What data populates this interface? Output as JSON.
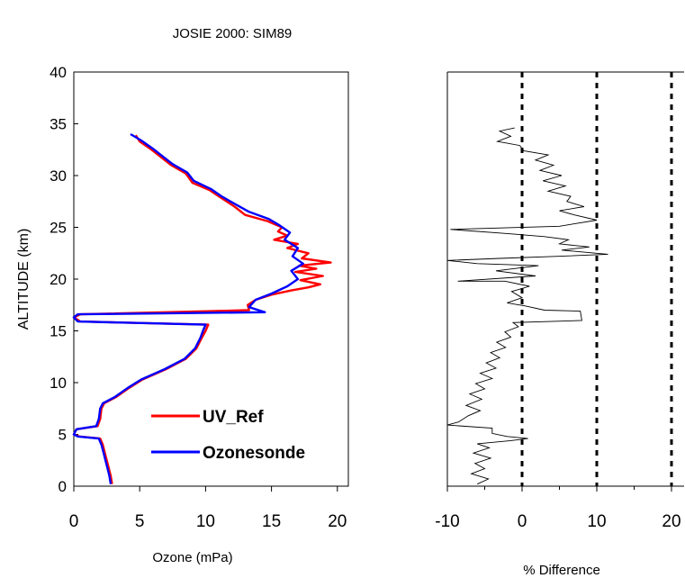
{
  "figure_title": "JOSIE 2000: SIM89",
  "chart_data": [
    {
      "type": "line",
      "title": "JOSIE 2000: SIM89",
      "xlabel": "Ozone (mPa)",
      "ylabel": "ALTITUDE  (km)",
      "xlim": [
        0,
        24
      ],
      "ylim": [
        0,
        40
      ],
      "xticks": [
        0,
        5,
        10,
        15,
        20
      ],
      "yticks": [
        0,
        5,
        10,
        15,
        20,
        25,
        30,
        35,
        40
      ],
      "grid": false,
      "legend_position": "lower-right",
      "series": [
        {
          "name": "UV_Ref",
          "color": "#ff0000",
          "points": [
            [
              2.9,
              0.2
            ],
            [
              2.8,
              1.0
            ],
            [
              2.6,
              2.0
            ],
            [
              2.4,
              3.0
            ],
            [
              2.2,
              4.0
            ],
            [
              2.0,
              4.6
            ],
            [
              0.4,
              4.8
            ],
            [
              0.0,
              5.0
            ],
            [
              0.2,
              5.5
            ],
            [
              1.8,
              5.8
            ],
            [
              2.0,
              6.5
            ],
            [
              2.1,
              7.5
            ],
            [
              2.3,
              8.0
            ],
            [
              3.2,
              8.6
            ],
            [
              4.2,
              9.5
            ],
            [
              5.2,
              10.3
            ],
            [
              7.0,
              11.3
            ],
            [
              8.5,
              12.3
            ],
            [
              9.3,
              13.3
            ],
            [
              9.7,
              14.3
            ],
            [
              10.0,
              15.0
            ],
            [
              10.2,
              15.6
            ],
            [
              0.5,
              15.9
            ],
            [
              0.0,
              16.3
            ],
            [
              0.5,
              16.6
            ],
            [
              13.3,
              17.0
            ],
            [
              13.2,
              17.5
            ],
            [
              13.8,
              18.0
            ],
            [
              15.0,
              18.5
            ],
            [
              16.5,
              18.9
            ],
            [
              17.8,
              19.2
            ],
            [
              18.7,
              19.5
            ],
            [
              17.2,
              19.9
            ],
            [
              18.9,
              20.3
            ],
            [
              16.8,
              20.7
            ],
            [
              18.4,
              21.0
            ],
            [
              17.1,
              21.3
            ],
            [
              19.5,
              21.6
            ],
            [
              17.3,
              22.0
            ],
            [
              17.8,
              22.5
            ],
            [
              16.2,
              23.0
            ],
            [
              17.0,
              23.4
            ],
            [
              15.2,
              23.8
            ],
            [
              16.2,
              24.2
            ],
            [
              15.5,
              24.6
            ],
            [
              15.8,
              25.0
            ],
            [
              14.7,
              25.6
            ],
            [
              13.0,
              26.2
            ],
            [
              12.2,
              27.0
            ],
            [
              11.0,
              28.0
            ],
            [
              10.3,
              28.6
            ],
            [
              9.0,
              29.3
            ],
            [
              8.5,
              30.2
            ],
            [
              7.4,
              31.0
            ],
            [
              6.6,
              31.8
            ],
            [
              5.9,
              32.5
            ],
            [
              5.0,
              33.3
            ],
            [
              4.7,
              33.9
            ]
          ]
        },
        {
          "name": "Ozonesonde",
          "color": "#0000ff",
          "points": [
            [
              2.8,
              0.2
            ],
            [
              2.7,
              1.0
            ],
            [
              2.5,
              2.0
            ],
            [
              2.3,
              3.0
            ],
            [
              2.1,
              4.0
            ],
            [
              1.9,
              4.6
            ],
            [
              0.3,
              4.8
            ],
            [
              0.0,
              5.0
            ],
            [
              0.2,
              5.5
            ],
            [
              1.7,
              5.8
            ],
            [
              1.9,
              6.5
            ],
            [
              2.0,
              7.5
            ],
            [
              2.2,
              8.0
            ],
            [
              3.1,
              8.6
            ],
            [
              4.1,
              9.5
            ],
            [
              5.1,
              10.3
            ],
            [
              6.9,
              11.3
            ],
            [
              8.4,
              12.3
            ],
            [
              9.2,
              13.3
            ],
            [
              9.6,
              14.3
            ],
            [
              9.8,
              15.0
            ],
            [
              10.0,
              15.6
            ],
            [
              0.3,
              15.9
            ],
            [
              0.0,
              16.3
            ],
            [
              0.3,
              16.6
            ],
            [
              14.5,
              16.8
            ],
            [
              13.3,
              17.3
            ],
            [
              13.8,
              18.0
            ],
            [
              15.0,
              18.6
            ],
            [
              16.2,
              19.3
            ],
            [
              17.0,
              20.0
            ],
            [
              16.5,
              20.8
            ],
            [
              17.4,
              21.5
            ],
            [
              16.6,
              22.2
            ],
            [
              17.0,
              23.0
            ],
            [
              16.0,
              23.8
            ],
            [
              16.4,
              24.5
            ],
            [
              15.6,
              25.2
            ],
            [
              14.8,
              25.8
            ],
            [
              13.3,
              26.5
            ],
            [
              12.3,
              27.2
            ],
            [
              11.2,
              28.0
            ],
            [
              10.4,
              28.7
            ],
            [
              9.1,
              29.5
            ],
            [
              8.6,
              30.3
            ],
            [
              7.5,
              31.1
            ],
            [
              6.7,
              31.9
            ],
            [
              6.0,
              32.6
            ],
            [
              5.1,
              33.4
            ],
            [
              4.3,
              34.0
            ]
          ]
        }
      ]
    },
    {
      "type": "line",
      "xlabel": "% Difference",
      "ylim": [
        0,
        40
      ],
      "xlim": [
        -10,
        22
      ],
      "xticks": [
        -10,
        0,
        10,
        20
      ],
      "reference_lines_x": [
        0,
        10,
        20
      ],
      "grid": false,
      "series": [
        {
          "color": "#000000",
          "points": [
            [
              -6.0,
              0.2
            ],
            [
              -4.5,
              0.7
            ],
            [
              -6.8,
              1.2
            ],
            [
              -5.0,
              1.7
            ],
            [
              -6.3,
              2.2
            ],
            [
              -4.2,
              2.7
            ],
            [
              -6.5,
              3.2
            ],
            [
              -4.4,
              3.7
            ],
            [
              -6.0,
              4.1
            ],
            [
              -1.5,
              4.4
            ],
            [
              0.8,
              4.6
            ],
            [
              -2.0,
              4.8
            ],
            [
              -4.0,
              5.1
            ],
            [
              -4.0,
              5.6
            ],
            [
              -10.0,
              5.9
            ],
            [
              -8.5,
              6.2
            ],
            [
              -7.2,
              6.8
            ],
            [
              -5.6,
              7.3
            ],
            [
              -7.5,
              7.8
            ],
            [
              -5.4,
              8.4
            ],
            [
              -7.0,
              8.9
            ],
            [
              -5.0,
              9.4
            ],
            [
              -6.2,
              9.9
            ],
            [
              -4.0,
              10.4
            ],
            [
              -5.6,
              10.9
            ],
            [
              -3.5,
              11.4
            ],
            [
              -4.8,
              11.9
            ],
            [
              -3.0,
              12.4
            ],
            [
              -4.2,
              12.9
            ],
            [
              -2.2,
              13.4
            ],
            [
              -3.4,
              13.9
            ],
            [
              -1.5,
              14.4
            ],
            [
              -2.3,
              14.9
            ],
            [
              -0.5,
              15.4
            ],
            [
              -1.2,
              15.8
            ],
            [
              8.0,
              16.0
            ],
            [
              7.8,
              16.9
            ],
            [
              3.0,
              17.0
            ],
            [
              0.5,
              17.4
            ],
            [
              -2.0,
              17.7
            ],
            [
              0.0,
              18.2
            ],
            [
              -1.4,
              18.8
            ],
            [
              1.0,
              19.3
            ],
            [
              -2.3,
              19.8
            ],
            [
              -8.6,
              19.8
            ],
            [
              1.8,
              20.3
            ],
            [
              -3.5,
              20.8
            ],
            [
              2.2,
              21.3
            ],
            [
              -6.0,
              21.5
            ],
            [
              -10.0,
              21.8
            ],
            [
              -3.0,
              22.0
            ],
            [
              4.8,
              22.2
            ],
            [
              11.5,
              22.4
            ],
            [
              5.3,
              22.8
            ],
            [
              9.0,
              23.1
            ],
            [
              5.0,
              23.4
            ],
            [
              6.2,
              23.8
            ],
            [
              3.0,
              24.1
            ],
            [
              -2.0,
              24.4
            ],
            [
              -9.6,
              24.8
            ],
            [
              5.0,
              25.1
            ],
            [
              10.0,
              25.7
            ],
            [
              7.0,
              26.2
            ],
            [
              5.0,
              26.6
            ],
            [
              8.3,
              27.0
            ],
            [
              6.0,
              27.5
            ],
            [
              6.5,
              28.0
            ],
            [
              3.5,
              28.5
            ],
            [
              5.8,
              29.0
            ],
            [
              2.8,
              29.5
            ],
            [
              5.3,
              30.0
            ],
            [
              2.4,
              30.5
            ],
            [
              4.2,
              31.0
            ],
            [
              1.8,
              31.5
            ],
            [
              3.5,
              32.0
            ],
            [
              0.2,
              32.4
            ],
            [
              -0.3,
              32.9
            ],
            [
              -3.3,
              33.3
            ],
            [
              -1.5,
              33.8
            ],
            [
              -3.0,
              34.3
            ],
            [
              -1.0,
              34.6
            ]
          ]
        }
      ]
    }
  ]
}
